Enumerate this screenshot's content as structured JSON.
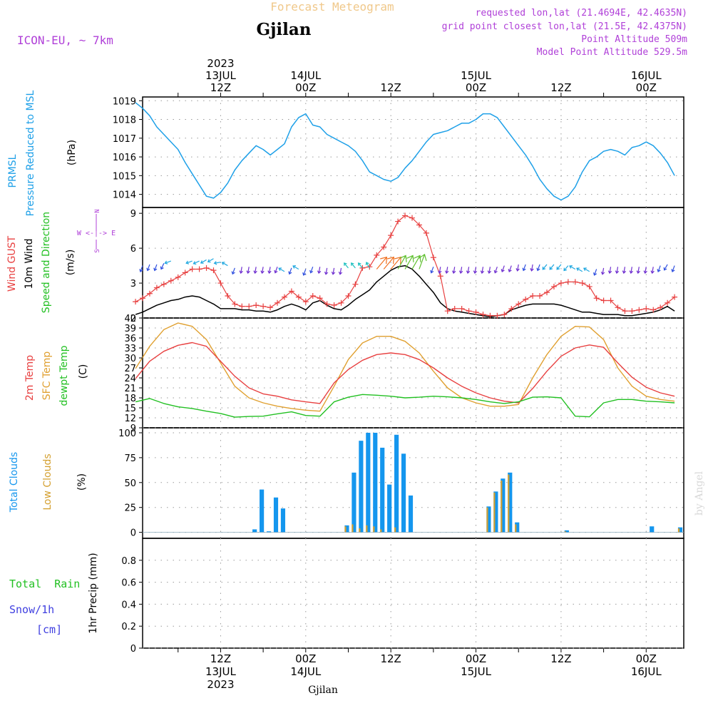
{
  "header": {
    "super_title": "Forecast Meteogram",
    "location": "Gjilan",
    "model": "ICON-EU, ~ 7km",
    "requested": "requested lon,lat (21.4694E, 42.4635N)",
    "gridpoint": "grid point closest lon,lat (21.5E, 42.4375N)",
    "point_alt": "Point Altitude 509m",
    "model_alt": "Model Point Altitude 529.5m",
    "watermark": "by Angel",
    "footer": "Gjilan"
  },
  "time_axis": {
    "top": [
      {
        "h": 12,
        "lines": [
          "2023",
          "13JUL",
          "12Z"
        ]
      },
      {
        "h": 24,
        "lines": [
          "14JUL",
          "00Z"
        ]
      },
      {
        "h": 36,
        "lines": [
          "12Z"
        ]
      },
      {
        "h": 48,
        "lines": [
          "15JUL",
          "00Z"
        ]
      },
      {
        "h": 60,
        "lines": [
          "12Z"
        ]
      },
      {
        "h": 72,
        "lines": [
          "16JUL",
          "00Z"
        ]
      }
    ],
    "bottom": [
      {
        "h": 12,
        "lines": [
          "12Z",
          "13JUL",
          "2023"
        ]
      },
      {
        "h": 24,
        "lines": [
          "00Z",
          "14JUL"
        ]
      },
      {
        "h": 36,
        "lines": [
          "12Z"
        ]
      },
      {
        "h": 48,
        "lines": [
          "00Z",
          "15JUL"
        ]
      },
      {
        "h": 60,
        "lines": [
          "12Z"
        ]
      },
      {
        "h": 72,
        "lines": [
          "00Z",
          "16JUL"
        ]
      }
    ]
  },
  "panels": {
    "pressure": {
      "label_1": "PRMSL",
      "label_2": "Pressure Reduced to MSL",
      "unit": "(hPa)"
    },
    "wind": {
      "label_gust": "Wind GUST",
      "label_wind": "10m Wind",
      "label_dir": "Speed and Direction",
      "unit": "(m/s)",
      "compass_n": "N",
      "compass_ew": "W <-|-> E",
      "compass_s": "S"
    },
    "temp": {
      "label_t2m": "2m Temp",
      "label_sfc": "SFC Temp",
      "label_dew": "dewpt Temp",
      "unit": "(C)"
    },
    "clouds": {
      "label_total": "Total Clouds",
      "label_low": "Low Clouds",
      "unit": "(%)"
    },
    "precip": {
      "label_rain": "Total  Rain",
      "label_snow": "Snow/1h",
      "label_cm": "[cm]",
      "label_axis": "1hr Precip (mm)"
    }
  },
  "colors": {
    "pressure": "#1ea0e8",
    "gust": "#e84040",
    "wind": "#000000",
    "t2m": "#e84040",
    "sfc": "#e0a030",
    "dew": "#22c022",
    "total_cloud": "#1496ee",
    "low_cloud": "#d4a030",
    "header_purple": "#b040d8",
    "super_title": "#f0c88a",
    "rain_label": "#22c022",
    "snow_label": "#4040e0"
  },
  "chart_data": [
    {
      "type": "line",
      "title": "PRMSL Pressure Reduced to MSL",
      "ylabel": "(hPa)",
      "ylim": [
        1013.3,
        1019.2
      ],
      "yticks": [
        1014,
        1015,
        1016,
        1017,
        1018,
        1019
      ],
      "x_unit": "hours from 13JUL 00Z",
      "series": [
        {
          "name": "PRMSL",
          "x": [
            0,
            1,
            2,
            3,
            4,
            5,
            6,
            7,
            8,
            9,
            10,
            11,
            12,
            13,
            14,
            15,
            16,
            17,
            18,
            19,
            20,
            21,
            22,
            23,
            24,
            25,
            26,
            27,
            28,
            29,
            30,
            31,
            32,
            33,
            34,
            35,
            36,
            37,
            38,
            39,
            40,
            41,
            42,
            43,
            44,
            45,
            46,
            47,
            48,
            49,
            50,
            51,
            52,
            53,
            54,
            55,
            56,
            57,
            58,
            59,
            60,
            61,
            62,
            63,
            64,
            65,
            66,
            67,
            68,
            69,
            70,
            71,
            72,
            73,
            74,
            75,
            76
          ],
          "y": [
            1018.9,
            1018.6,
            1018.2,
            1017.6,
            1017.2,
            1016.8,
            1016.4,
            1015.7,
            1015.1,
            1014.5,
            1013.9,
            1013.8,
            1014.1,
            1014.6,
            1015.3,
            1015.8,
            1016.2,
            1016.6,
            1016.4,
            1016.1,
            1016.4,
            1016.7,
            1017.6,
            1018.1,
            1018.3,
            1017.7,
            1017.6,
            1017.2,
            1017.0,
            1016.8,
            1016.6,
            1016.3,
            1015.8,
            1015.2,
            1015.0,
            1014.8,
            1014.7,
            1014.9,
            1015.4,
            1015.8,
            1016.3,
            1016.8,
            1017.2,
            1017.3,
            1017.4,
            1017.6,
            1017.8,
            1017.8,
            1018.0,
            1018.3,
            1018.3,
            1018.1,
            1017.6,
            1017.1,
            1016.6,
            1016.1,
            1015.5,
            1014.8,
            1014.3,
            1013.9,
            1013.7,
            1013.9,
            1014.4,
            1015.2,
            1015.8,
            1016.0,
            1016.3,
            1016.4,
            1016.3,
            1016.1,
            1016.5,
            1016.6,
            1016.8,
            1016.6,
            1016.2,
            1015.7,
            1015.0
          ]
        }
      ]
    },
    {
      "type": "line",
      "title": "Wind GUST / 10m Wind Speed and Direction",
      "ylabel": "(m/s)",
      "ylim": [
        0,
        9.5
      ],
      "yticks": [
        0,
        3,
        6,
        9
      ],
      "x_unit": "hours from 13JUL 00Z",
      "series": [
        {
          "name": "Wind GUST",
          "x": [
            0,
            1,
            2,
            3,
            4,
            5,
            6,
            7,
            8,
            9,
            10,
            11,
            12,
            13,
            14,
            15,
            16,
            17,
            18,
            19,
            20,
            21,
            22,
            23,
            24,
            25,
            26,
            27,
            28,
            29,
            30,
            31,
            32,
            33,
            34,
            35,
            36,
            37,
            38,
            39,
            40,
            41,
            42,
            43,
            44,
            45,
            46,
            47,
            48,
            49,
            50,
            51,
            52,
            53,
            54,
            55,
            56,
            57,
            58,
            59,
            60,
            61,
            62,
            63,
            64,
            65,
            66,
            67,
            68,
            69,
            70,
            71,
            72,
            73,
            74,
            75,
            76
          ],
          "y": [
            1.4,
            1.7,
            2.1,
            2.6,
            2.9,
            3.2,
            3.5,
            3.9,
            4.2,
            4.2,
            4.3,
            4.1,
            3.0,
            1.9,
            1.2,
            1.0,
            1.0,
            1.1,
            1.0,
            0.9,
            1.3,
            1.8,
            2.3,
            1.8,
            1.4,
            1.9,
            1.7,
            1.2,
            1.1,
            1.3,
            1.9,
            2.9,
            4.3,
            4.4,
            5.4,
            6.1,
            7.1,
            8.3,
            8.8,
            8.6,
            8.0,
            7.3,
            5.2,
            3.6,
            0.6,
            0.8,
            0.8,
            0.6,
            0.5,
            0.3,
            0.2,
            0.2,
            0.3,
            0.8,
            1.2,
            1.6,
            1.9,
            1.9,
            2.2,
            2.7,
            3.0,
            3.1,
            3.1,
            3.0,
            2.7,
            1.7,
            1.5,
            1.5,
            0.9,
            0.6,
            0.6,
            0.7,
            0.8,
            0.7,
            0.9,
            1.3,
            1.8
          ]
        },
        {
          "name": "10m Wind",
          "x": [
            0,
            1,
            2,
            3,
            4,
            5,
            6,
            7,
            8,
            9,
            10,
            11,
            12,
            13,
            14,
            15,
            16,
            17,
            18,
            19,
            20,
            21,
            22,
            23,
            24,
            25,
            26,
            27,
            28,
            29,
            30,
            31,
            32,
            33,
            34,
            35,
            36,
            37,
            38,
            39,
            40,
            41,
            42,
            43,
            44,
            45,
            46,
            47,
            48,
            49,
            50,
            51,
            52,
            53,
            54,
            55,
            56,
            57,
            58,
            59,
            60,
            61,
            62,
            63,
            64,
            65,
            66,
            67,
            68,
            69,
            70,
            71,
            72,
            73,
            74,
            75,
            76
          ],
          "y": [
            0.3,
            0.5,
            0.8,
            1.1,
            1.3,
            1.5,
            1.6,
            1.8,
            1.9,
            1.8,
            1.5,
            1.2,
            0.8,
            0.8,
            0.8,
            0.7,
            0.7,
            0.6,
            0.6,
            0.5,
            0.7,
            1.0,
            1.2,
            1.0,
            0.7,
            1.3,
            1.5,
            1.1,
            0.8,
            0.7,
            1.1,
            1.6,
            2.0,
            2.4,
            3.1,
            3.6,
            4.1,
            4.4,
            4.5,
            4.2,
            3.6,
            2.9,
            2.2,
            1.3,
            0.8,
            0.6,
            0.5,
            0.4,
            0.3,
            0.2,
            0.1,
            0.2,
            0.3,
            0.7,
            0.9,
            1.1,
            1.2,
            1.2,
            1.2,
            1.2,
            1.1,
            0.9,
            0.7,
            0.5,
            0.5,
            0.4,
            0.3,
            0.3,
            0.3,
            0.2,
            0.2,
            0.3,
            0.4,
            0.5,
            0.7,
            1.0,
            0.6
          ]
        }
      ]
    },
    {
      "type": "line",
      "title": "2m Temp / SFC Temp / dewpt Temp",
      "ylabel": "(C)",
      "ylim": [
        9,
        42
      ],
      "yticks": [
        9,
        12,
        15,
        18,
        21,
        24,
        27,
        30,
        33,
        36,
        39,
        42
      ],
      "x_unit": "hours from 13JUL 00Z",
      "series": [
        {
          "name": "2m Temp",
          "x": [
            0,
            2,
            4,
            6,
            8,
            10,
            12,
            14,
            16,
            18,
            20,
            22,
            24,
            26,
            28,
            30,
            32,
            34,
            36,
            38,
            40,
            42,
            44,
            46,
            48,
            50,
            52,
            54,
            56,
            58,
            60,
            62,
            64,
            66,
            68,
            70,
            72,
            74,
            76
          ],
          "y": [
            23.8,
            29.0,
            32.0,
            33.8,
            34.6,
            33.5,
            29.0,
            24.5,
            21.0,
            19.2,
            18.5,
            17.4,
            16.8,
            16.3,
            22.5,
            26.5,
            29.3,
            31.0,
            31.5,
            31.0,
            29.5,
            27.0,
            24.0,
            21.5,
            19.5,
            18.0,
            17.0,
            16.5,
            20.8,
            26.0,
            30.5,
            33.0,
            33.9,
            33.2,
            28.5,
            24.2,
            21.2,
            19.5,
            18.5
          ]
        },
        {
          "name": "SFC Temp",
          "x": [
            0,
            2,
            4,
            6,
            8,
            10,
            12,
            14,
            16,
            18,
            20,
            22,
            24,
            26,
            28,
            30,
            32,
            34,
            36,
            38,
            40,
            42,
            44,
            46,
            48,
            50,
            52,
            54,
            56,
            58,
            60,
            62,
            64,
            66,
            68,
            70,
            72,
            74,
            76
          ],
          "y": [
            26.8,
            33.5,
            38.5,
            40.5,
            39.5,
            35.5,
            28.5,
            21.5,
            18.0,
            16.5,
            15.5,
            14.8,
            14.3,
            14.0,
            21.5,
            29.5,
            34.5,
            36.5,
            36.5,
            35.0,
            31.5,
            26.0,
            21.0,
            18.0,
            16.5,
            15.5,
            15.5,
            16.0,
            24.0,
            31.0,
            36.5,
            39.5,
            39.3,
            35.5,
            27.0,
            21.5,
            18.5,
            17.5,
            17.0
          ]
        },
        {
          "name": "dewpt Temp",
          "x": [
            0,
            2,
            4,
            6,
            8,
            10,
            12,
            14,
            16,
            18,
            20,
            22,
            24,
            26,
            28,
            30,
            32,
            34,
            36,
            38,
            40,
            42,
            44,
            46,
            48,
            50,
            52,
            54,
            56,
            58,
            60,
            62,
            64,
            66,
            68,
            70,
            72,
            74,
            76
          ],
          "y": [
            16.8,
            17.8,
            16.3,
            15.3,
            14.8,
            14.0,
            13.3,
            12.2,
            12.4,
            12.5,
            13.2,
            13.8,
            12.7,
            12.5,
            16.8,
            18.2,
            19.0,
            18.8,
            18.5,
            18.0,
            18.2,
            18.5,
            18.3,
            18.0,
            17.5,
            16.8,
            16.3,
            16.8,
            18.2,
            18.3,
            18.0,
            12.5,
            12.3,
            16.5,
            17.5,
            17.5,
            17.0,
            16.8,
            16.5
          ]
        }
      ]
    },
    {
      "type": "bar",
      "title": "Total Clouds / Low Clouds",
      "ylabel": "(%)",
      "ylim": [
        -6,
        105
      ],
      "yticks": [
        0,
        25,
        50,
        75,
        100
      ],
      "x_unit": "hours from 13JUL 00Z",
      "x": [
        13,
        14,
        15,
        16,
        17,
        18,
        19,
        20,
        21,
        22,
        23,
        24,
        25,
        26,
        27,
        28,
        29,
        30,
        31,
        32,
        33,
        34,
        35,
        36,
        37,
        38,
        39,
        40,
        41,
        42,
        43,
        44,
        45,
        46,
        47,
        48,
        49,
        50,
        51,
        52,
        53,
        54,
        55,
        56,
        57,
        58,
        59,
        60,
        61,
        62,
        63,
        64,
        65,
        66,
        67,
        68,
        69,
        70,
        71,
        72,
        73,
        74,
        75,
        76,
        77
      ],
      "series": [
        {
          "name": "Total Clouds",
          "values": [
            0,
            0,
            0,
            0,
            3,
            43,
            1,
            35,
            24,
            0,
            0,
            0,
            0,
            0,
            0,
            0,
            0,
            7,
            60,
            92,
            100,
            100,
            85,
            48,
            98,
            79,
            37,
            0,
            0,
            0,
            0,
            0,
            0,
            0,
            0,
            0,
            0,
            26,
            41,
            54,
            60,
            10,
            0,
            0,
            0,
            0,
            0,
            0,
            2,
            0,
            0,
            0,
            0,
            0,
            0,
            0,
            0,
            0,
            0,
            0,
            6,
            0,
            0,
            0,
            5
          ]
        },
        {
          "name": "Low Clouds",
          "values": [
            0,
            0,
            0,
            0,
            0,
            0,
            0,
            0,
            0,
            0,
            0,
            0,
            0,
            0,
            0,
            0,
            0,
            6,
            8,
            4,
            7,
            6,
            3,
            0,
            5,
            0,
            0,
            0,
            0,
            0,
            0,
            0,
            0,
            0,
            0,
            0,
            0,
            25,
            40,
            52,
            58,
            8,
            0,
            0,
            0,
            0,
            0,
            0,
            1,
            0,
            0,
            0,
            0,
            0,
            0,
            0,
            0,
            0,
            0,
            0,
            0,
            0,
            0,
            0,
            4
          ]
        }
      ]
    },
    {
      "type": "bar",
      "title": "Total Rain / Snow 1h",
      "ylabel": "1hr Precip (mm)",
      "ylim": [
        0,
        1.0
      ],
      "yticks": [
        0,
        0.2,
        0.4,
        0.6,
        0.8
      ],
      "series": [
        {
          "name": "Total Rain",
          "values": []
        },
        {
          "name": "Snow/1h",
          "values": []
        }
      ]
    }
  ]
}
